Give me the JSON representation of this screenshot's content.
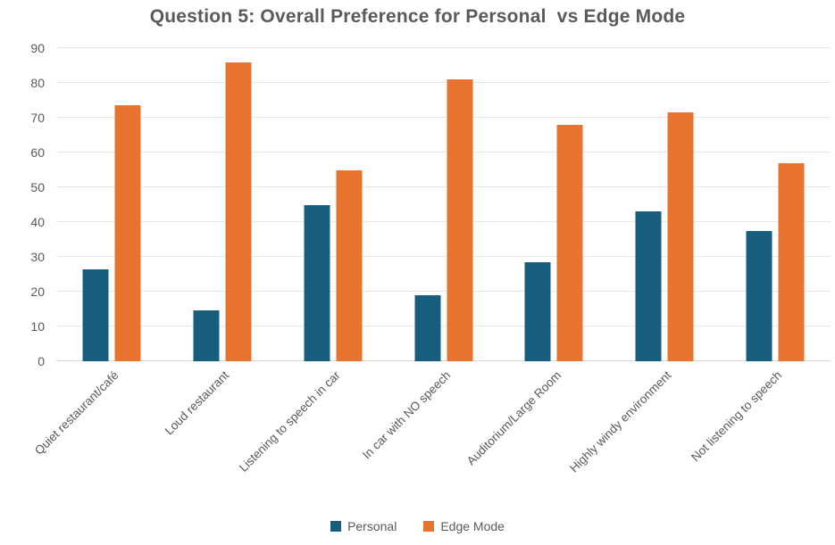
{
  "chart_data": {
    "type": "bar",
    "title": "Question 5: Overall Preference for Personal  vs Edge Mode",
    "categories": [
      "Quiet restaurant/café",
      "Loud restaurant",
      "Listening to speech in car",
      "In car with NO speech",
      "Auditorium/Large Room",
      "Highly windy environment",
      "Not listening to speech"
    ],
    "series": [
      {
        "name": "Personal",
        "color": "#175E7E",
        "values": [
          26.5,
          14.5,
          45,
          19,
          28.5,
          43,
          37.5
        ]
      },
      {
        "name": "Edge Mode",
        "color": "#E8732E",
        "values": [
          73.5,
          86,
          55,
          81,
          68,
          71.5,
          57
        ]
      }
    ],
    "xlabel": "",
    "ylabel": "",
    "ylim": [
      0,
      90
    ],
    "yticks": [
      0,
      10,
      20,
      30,
      40,
      50,
      60,
      70,
      80,
      90
    ],
    "grid": true,
    "grid_color": "#e7e7e7",
    "axis_text_color": "#595959",
    "title_color": "#5a5a5a",
    "legend_position": "bottom"
  }
}
